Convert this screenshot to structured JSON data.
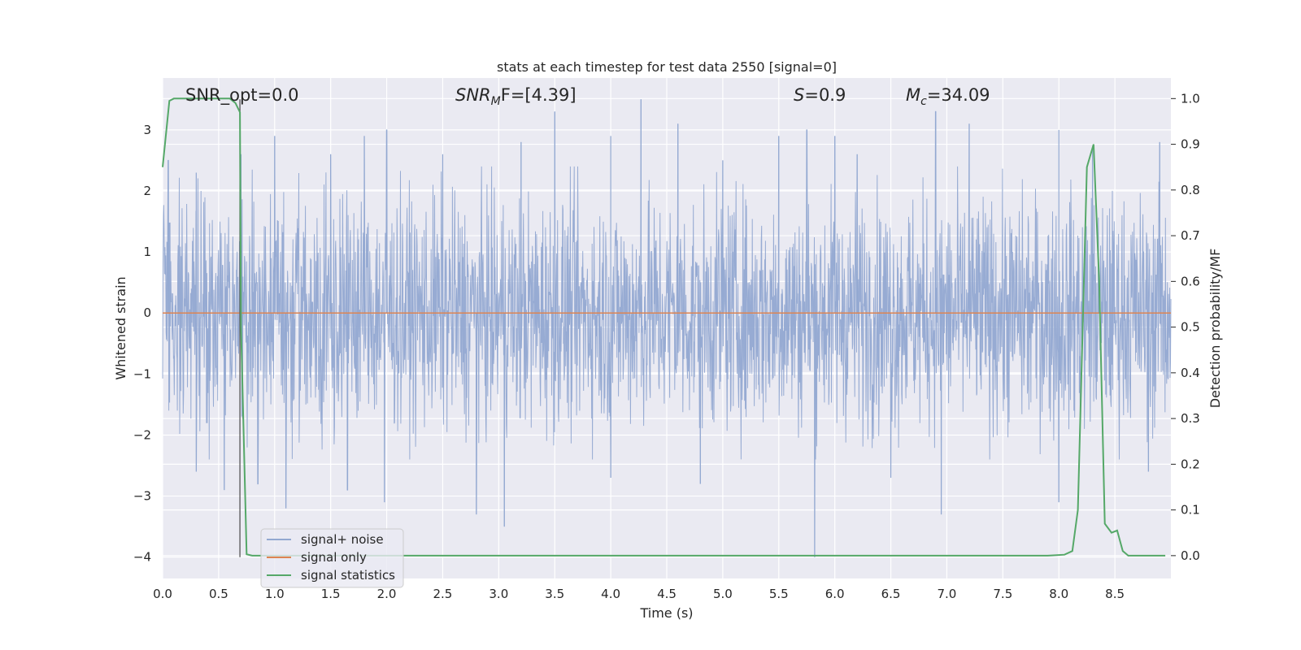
{
  "chart_data": {
    "type": "line",
    "title": "stats at each timestep for test data 2550 [signal=0]",
    "xlabel": "Time (s)",
    "ylabel": "Whitened strain",
    "y2label": "Detection probability/MF",
    "xlim": [
      0.0,
      9.0
    ],
    "ylim": [
      -4.35,
      3.85
    ],
    "y2lim": [
      -0.05,
      1.045
    ],
    "xticks": [
      "0.0",
      "0.5",
      "1.0",
      "1.5",
      "2.0",
      "2.5",
      "3.0",
      "3.5",
      "4.0",
      "4.5",
      "5.0",
      "5.5",
      "6.0",
      "6.5",
      "7.0",
      "7.5",
      "8.0",
      "8.5"
    ],
    "yticks": [
      "3",
      "2",
      "1",
      "0",
      "−1",
      "−2",
      "−3",
      "−4"
    ],
    "y2ticks": [
      "1.0",
      "0.9",
      "0.8",
      "0.7",
      "0.6",
      "0.5",
      "0.4",
      "0.3",
      "0.2",
      "0.1",
      "0.0"
    ],
    "grid": true,
    "legend_position": "bottom-left",
    "annotations": {
      "snr_opt": "SNR_opt=0.0",
      "snr_mf_base": "SNR",
      "snr_mf_sub": "M",
      "snr_mf_rest": "F=[4.39]",
      "s_italic": "S",
      "s_rest": "=0.9",
      "mc_italic": "M",
      "mc_sub": "c",
      "mc_rest": "=34.09"
    },
    "vline_x": 0.69,
    "series": [
      {
        "name": "signal+ noise",
        "color": "#92a8d1",
        "description_values": "noise band approx ±1.2 with peaks up to 3.5 and dips to -4.0",
        "peaks": [
          [
            0.05,
            2.5
          ],
          [
            0.3,
            2.3
          ],
          [
            0.7,
            2.6
          ],
          [
            1.0,
            2.9
          ],
          [
            1.5,
            2.6
          ],
          [
            1.8,
            2.9
          ],
          [
            2.0,
            3.0
          ],
          [
            2.5,
            2.6
          ],
          [
            3.2,
            2.8
          ],
          [
            3.5,
            3.3
          ],
          [
            4.0,
            2.9
          ],
          [
            4.27,
            3.5
          ],
          [
            4.6,
            3.1
          ],
          [
            5.0,
            2.5
          ],
          [
            5.5,
            2.9
          ],
          [
            5.75,
            3.0
          ],
          [
            6.0,
            2.9
          ],
          [
            6.2,
            2.6
          ],
          [
            6.9,
            3.3
          ],
          [
            7.2,
            3.1
          ],
          [
            8.0,
            3.0
          ],
          [
            8.3,
            2.7
          ],
          [
            8.9,
            2.8
          ]
        ],
        "troughs": [
          [
            0.3,
            -2.6
          ],
          [
            0.55,
            -2.9
          ],
          [
            0.85,
            -2.8
          ],
          [
            1.1,
            -3.2
          ],
          [
            1.65,
            -2.9
          ],
          [
            1.98,
            -3.1
          ],
          [
            2.8,
            -3.3
          ],
          [
            3.05,
            -3.5
          ],
          [
            4.0,
            -2.7
          ],
          [
            4.8,
            -2.8
          ],
          [
            5.82,
            -4.0
          ],
          [
            6.5,
            -2.7
          ],
          [
            6.95,
            -3.3
          ],
          [
            8.0,
            -3.1
          ],
          [
            8.8,
            -2.6
          ]
        ]
      },
      {
        "name": "signal only",
        "color": "#dd8452",
        "x": [
          0.0,
          9.0
        ],
        "y": [
          0.0,
          0.0
        ]
      },
      {
        "name": "signal statistics",
        "color": "#55a868",
        "axis": "y2",
        "x": [
          0.0,
          0.06,
          0.1,
          0.2,
          0.3,
          0.4,
          0.5,
          0.55,
          0.6,
          0.65,
          0.69,
          0.7,
          0.75,
          0.8,
          0.9,
          1.0,
          2.0,
          3.0,
          4.0,
          5.0,
          6.0,
          7.0,
          7.9,
          8.05,
          8.12,
          8.17,
          8.25,
          8.31,
          8.36,
          8.41,
          8.47,
          8.52,
          8.57,
          8.62,
          8.67,
          8.75,
          8.95
        ],
        "y": [
          0.85,
          0.995,
          1.0,
          1.0,
          1.0,
          1.0,
          1.0,
          1.0,
          1.0,
          0.99,
          0.97,
          0.5,
          0.003,
          0.0,
          0.0,
          0.0,
          0.0,
          0.0,
          0.0,
          0.0,
          0.0,
          0.0,
          0.0,
          0.002,
          0.01,
          0.1,
          0.85,
          0.9,
          0.6,
          0.07,
          0.05,
          0.055,
          0.01,
          0.0,
          0.0,
          0.0,
          0.0
        ]
      }
    ]
  }
}
